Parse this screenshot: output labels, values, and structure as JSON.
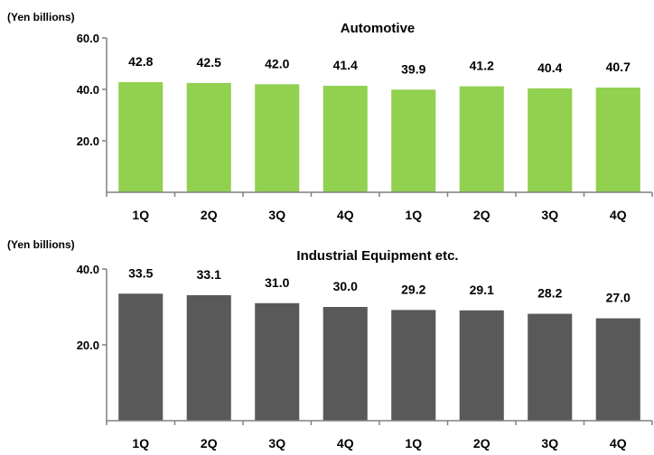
{
  "chart_data": [
    {
      "type": "bar",
      "title": "Automotive",
      "ylabel": "(Yen billions)",
      "ylim": [
        0,
        60
      ],
      "yticks": [
        "60.0",
        "40.0",
        "20.0"
      ],
      "categories": [
        "1Q",
        "2Q",
        "3Q",
        "4Q",
        "1Q",
        "2Q",
        "3Q",
        "4Q"
      ],
      "values": [
        42.8,
        42.5,
        42.0,
        41.4,
        39.9,
        41.2,
        40.4,
        40.7
      ],
      "value_labels": [
        "42.8",
        "42.5",
        "42.0",
        "41.4",
        "39.9",
        "41.2",
        "40.4",
        "40.7"
      ],
      "color": "#92d050",
      "grid": false,
      "legend": "none"
    },
    {
      "type": "bar",
      "title": "Industrial Equipment etc.",
      "ylabel": "(Yen billions)",
      "ylim": [
        0,
        40
      ],
      "yticks": [
        "40.0",
        "20.0"
      ],
      "categories": [
        "1Q",
        "2Q",
        "3Q",
        "4Q",
        "1Q",
        "2Q",
        "3Q",
        "4Q"
      ],
      "values": [
        33.5,
        33.1,
        31.0,
        30.0,
        29.2,
        29.1,
        28.2,
        27.0
      ],
      "value_labels": [
        "33.5",
        "33.1",
        "31.0",
        "30.0",
        "29.2",
        "29.1",
        "28.2",
        "27.0"
      ],
      "color": "#595959",
      "grid": false,
      "legend": "none"
    }
  ]
}
